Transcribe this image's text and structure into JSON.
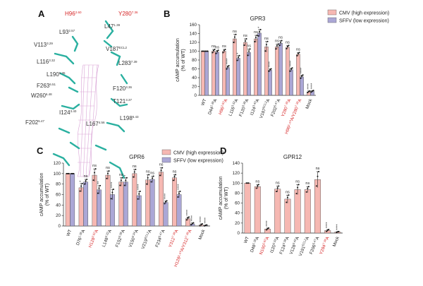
{
  "figure": {
    "panels": [
      "A",
      "B",
      "C",
      "D"
    ],
    "legend": {
      "cmv": {
        "label": "CMV (high expression)",
        "color": "#f6b8b2"
      },
      "sffv": {
        "label": "SFFV (low expression)",
        "color": "#aba7d6"
      }
    },
    "colors": {
      "highlight": "#d62728",
      "pocket": "#d9a3d6",
      "residue": "#2ab0a0"
    }
  },
  "panel_a": {
    "residues": [
      {
        "name": "H96",
        "sup": "2.60",
        "highlight": true
      },
      {
        "name": "Y280",
        "sup": "7.36",
        "highlight": true
      },
      {
        "name": "L93",
        "sup": "2.57",
        "highlight": false
      },
      {
        "name": "L47",
        "sup": "1.39",
        "highlight": false
      },
      {
        "name": "V113",
        "sup": "3.29",
        "highlight": false
      },
      {
        "name": "V187",
        "sup": "ECL2",
        "highlight": false
      },
      {
        "name": "L116",
        "sup": "3.32",
        "highlight": false
      },
      {
        "name": "L283",
        "sup": "7.39",
        "highlight": false
      },
      {
        "name": "L190",
        "sup": "5.35",
        "highlight": false
      },
      {
        "name": "F120",
        "sup": "3.36",
        "highlight": false
      },
      {
        "name": "F263",
        "sup": "6.51",
        "highlight": false
      },
      {
        "name": "T121",
        "sup": "3.37",
        "highlight": false
      },
      {
        "name": "W260",
        "sup": "6.48",
        "highlight": false
      },
      {
        "name": "L198",
        "sup": "5.43",
        "highlight": false
      },
      {
        "name": "I124",
        "sup": "3.40",
        "highlight": false
      },
      {
        "name": "L167",
        "sup": "4.56",
        "highlight": false
      },
      {
        "name": "F202",
        "sup": "5.47",
        "highlight": false
      }
    ]
  },
  "chart_data": [
    {
      "panel": "B",
      "type": "bar",
      "title": "GPR3",
      "ylabel": "cAMP accumulation\n(% of WT)",
      "ylim": [
        0,
        160
      ],
      "ticks": [
        0,
        20,
        40,
        60,
        80,
        100,
        120,
        140,
        160
      ],
      "categories": [
        {
          "name": "WT",
          "sup": "",
          "red": false
        },
        {
          "name": "D44",
          "sup": "1.36",
          "suffix": "A",
          "red": false
        },
        {
          "name": "H96",
          "sup": "2.60",
          "suffix": "A",
          "red": true
        },
        {
          "name": "L116",
          "sup": "3.32",
          "suffix": "A",
          "red": false
        },
        {
          "name": "F120",
          "sup": "3.36",
          "suffix": "A",
          "red": false
        },
        {
          "name": "I124",
          "sup": "3.40",
          "suffix": "A",
          "red": false
        },
        {
          "name": "V187",
          "sup": "ECL2",
          "suffix": "A",
          "red": false
        },
        {
          "name": "F202",
          "sup": "5.47",
          "suffix": "A",
          "red": false
        },
        {
          "name": "Y280",
          "sup": "7.36",
          "suffix": "A",
          "red": true
        },
        {
          "name": "H96²·⁶⁰A/Y280",
          "sup": "7.36",
          "suffix": "A",
          "red": true
        },
        {
          "name": "Mock",
          "sup": "",
          "red": false
        }
      ],
      "series": [
        {
          "name": "CMV (high expression)",
          "values": [
            100,
            100,
            100,
            128,
            120,
            128,
            110,
            110,
            109,
            93,
            8
          ],
          "errors": [
            0,
            4,
            4,
            10,
            8,
            8,
            12,
            6,
            4,
            4,
            2
          ],
          "sig": [
            "",
            "ns",
            "ns",
            "ns",
            "ns",
            "ns",
            "ns",
            "ns",
            "ns",
            "ns",
            "****"
          ]
        },
        {
          "name": "SFFV (low expression)",
          "values": [
            100,
            98,
            63,
            84,
            97,
            141,
            57,
            118,
            58,
            42,
            9
          ],
          "errors": [
            0,
            4,
            4,
            6,
            8,
            8,
            3,
            6,
            4,
            4,
            2
          ],
          "sig": [
            "",
            "ns",
            "****",
            "*",
            "ns",
            "*",
            "****",
            "ns",
            "****",
            "****",
            "****"
          ]
        }
      ]
    },
    {
      "panel": "C",
      "type": "bar",
      "title": "GPR6",
      "ylabel": "cAMP accumulation\n(% of WT)",
      "ylim": [
        0,
        120
      ],
      "ticks": [
        0,
        20,
        40,
        60,
        80,
        100,
        120
      ],
      "categories": [
        {
          "name": "WT",
          "sup": "",
          "red": false
        },
        {
          "name": "D76",
          "sup": "1.36",
          "suffix": "A",
          "red": false
        },
        {
          "name": "H128",
          "sup": "2.60",
          "suffix": "A",
          "red": true
        },
        {
          "name": "L148",
          "sup": "3.32",
          "suffix": "A",
          "red": false
        },
        {
          "name": "F152",
          "sup": "3.36",
          "suffix": "A",
          "red": false
        },
        {
          "name": "V150",
          "sup": "3.34",
          "suffix": "A",
          "red": false
        },
        {
          "name": "V219",
          "sup": "ECL2",
          "suffix": "A",
          "red": false
        },
        {
          "name": "F234",
          "sup": "5.47",
          "suffix": "A",
          "red": false
        },
        {
          "name": "Y312",
          "sup": "7.36",
          "suffix": "A",
          "red": true
        },
        {
          "name": "H128²·⁶⁰A/Y312",
          "sup": "7.36",
          "suffix": "A",
          "red": true
        },
        {
          "name": "Mock",
          "sup": "",
          "red": false
        }
      ],
      "series": [
        {
          "name": "CMV (high expression)",
          "values": [
            100,
            73,
            97,
            97,
            84,
            100,
            88,
            103,
            92,
            14,
            2
          ],
          "errors": [
            0,
            8,
            12,
            8,
            8,
            8,
            10,
            8,
            6,
            3,
            2
          ],
          "sig": [
            "",
            "*",
            "ns",
            "ns",
            "ns",
            "ns",
            "ns",
            "ns",
            "ns",
            "****",
            "****"
          ]
        },
        {
          "name": "SFFV (low expression)",
          "values": [
            100,
            84,
            69,
            60,
            84,
            58,
            89,
            45,
            60,
            4,
            1
          ],
          "errors": [
            0,
            5,
            8,
            10,
            8,
            8,
            6,
            3,
            6,
            2,
            1
          ],
          "sig": [
            "",
            "ns",
            "**",
            "****",
            "*",
            "****",
            "ns",
            "****",
            "****",
            "****",
            "****"
          ]
        }
      ]
    },
    {
      "panel": "D",
      "type": "bar",
      "title": "GPR12",
      "ylabel": "cAMP accumulation\n(% of WT)",
      "ylim": [
        0,
        140
      ],
      "ticks": [
        0,
        20,
        40,
        60,
        80,
        100,
        120,
        140
      ],
      "categories": [
        {
          "name": "WT",
          "sup": "",
          "red": false
        },
        {
          "name": "D48",
          "sup": "1.36",
          "suffix": "A",
          "red": false
        },
        {
          "name": "N100",
          "sup": "2.60",
          "suffix": "A",
          "red": true
        },
        {
          "name": "I120",
          "sup": "3.32",
          "suffix": "A",
          "red": false
        },
        {
          "name": "F124",
          "sup": "3.36",
          "suffix": "A",
          "red": false
        },
        {
          "name": "V128",
          "sup": "3.40",
          "suffix": "A",
          "red": false
        },
        {
          "name": "V191",
          "sup": "ECL2",
          "suffix": "A",
          "red": false
        },
        {
          "name": "F206",
          "sup": "5.47",
          "suffix": "A",
          "red": false
        },
        {
          "name": "Y284",
          "sup": "7.36",
          "suffix": "A",
          "red": true
        },
        {
          "name": "Mock",
          "sup": "",
          "red": false
        }
      ],
      "series": [
        {
          "name": "CMV (high expression)",
          "values": [
            100,
            93,
            8,
            88,
            68,
            87,
            87,
            107,
            5,
            2
          ],
          "errors": [
            0,
            4,
            2,
            6,
            8,
            10,
            6,
            16,
            2,
            1
          ],
          "sig": [
            "",
            "ns",
            "****",
            "ns",
            "ns",
            "ns",
            "ns",
            "ns",
            "****",
            "****"
          ]
        }
      ]
    }
  ]
}
